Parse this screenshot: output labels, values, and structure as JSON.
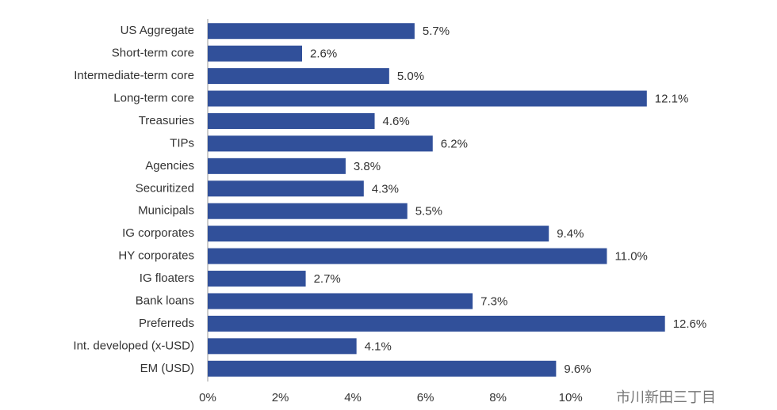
{
  "chart_data": {
    "type": "barh",
    "categories": [
      "US Aggregate",
      "Short-term core",
      "Intermediate-term core",
      "Long-term core",
      "Treasuries",
      "TIPs",
      "Agencies",
      "Securitized",
      "Municipals",
      "IG corporates",
      "HY corporates",
      "IG floaters",
      "Bank loans",
      "Preferreds",
      "Int. developed (x-USD)",
      "EM (USD)"
    ],
    "values": [
      5.7,
      2.6,
      5.0,
      12.1,
      4.6,
      6.2,
      3.8,
      4.3,
      5.5,
      9.4,
      11.0,
      2.7,
      7.3,
      12.6,
      4.1,
      9.6
    ],
    "value_labels": [
      "5.7%",
      "2.6%",
      "5.0%",
      "12.1%",
      "4.6%",
      "6.2%",
      "3.8%",
      "4.3%",
      "5.5%",
      "9.4%",
      "11.0%",
      "2.7%",
      "7.3%",
      "12.6%",
      "4.1%",
      "9.6%"
    ],
    "color": "#31509a",
    "xlim": [
      0,
      13
    ],
    "xticks": [
      {
        "value": 0,
        "label": "0%"
      },
      {
        "value": 2,
        "label": "2%"
      },
      {
        "value": 4,
        "label": "4%"
      },
      {
        "value": 6,
        "label": "6%"
      },
      {
        "value": 8,
        "label": "8%"
      },
      {
        "value": 10,
        "label": "10%"
      }
    ],
    "grid": false,
    "watermark": "市川新田三丁目"
  }
}
